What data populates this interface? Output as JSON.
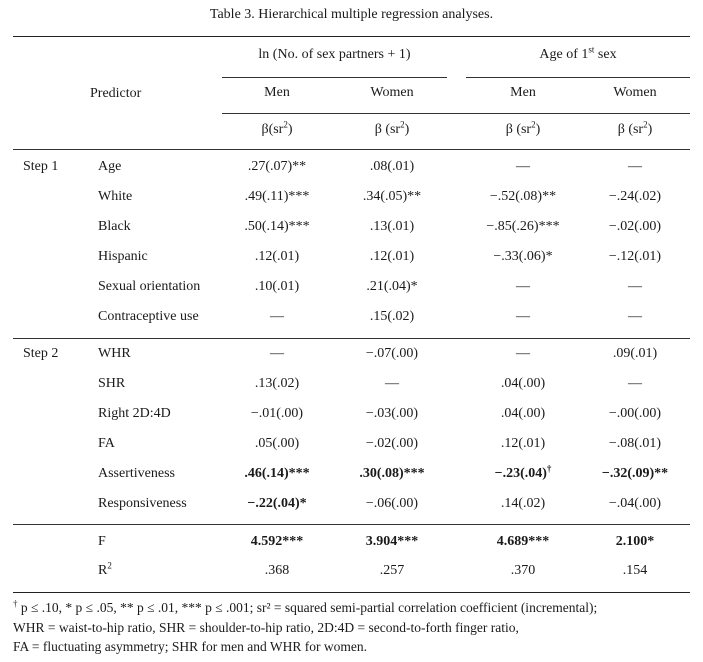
{
  "table": {
    "caption": "Table 3.   Hierarchical multiple regression analyses.",
    "col_groups": [
      {
        "label": "ln (No. of sex partners + 1)"
      },
      {
        "label": "Age of 1",
        "label_sup": "st",
        "label_after": " sex"
      }
    ],
    "predictor_label": "Predictor",
    "sub_headers": [
      "Men",
      "Women",
      "Men",
      "Women"
    ],
    "beta_headers": [
      {
        "pre": "β(sr",
        "sup": "2",
        "post": ")"
      },
      {
        "pre": "β (sr",
        "sup": "2",
        "post": ")"
      },
      {
        "pre": "β (sr",
        "sup": "2",
        "post": ")"
      },
      {
        "pre": "β (sr",
        "sup": "2",
        "post": ")"
      }
    ],
    "steps": [
      {
        "label": "Step 1",
        "rows": [
          {
            "predictor": "Age",
            "values": [
              ".27(.07)**",
              ".08(.01)",
              "—",
              "—"
            ]
          },
          {
            "predictor": "White",
            "values": [
              ".49(.11)***",
              ".34(.05)**",
              "−.52(.08)**",
              "−.24(.02)"
            ]
          },
          {
            "predictor": "Black",
            "values": [
              ".50(.14)***",
              ".13(.01)",
              "−.85(.26)***",
              "−.02(.00)"
            ]
          },
          {
            "predictor": "Hispanic",
            "values": [
              ".12(.01)",
              ".12(.01)",
              "−.33(.06)*",
              "−.12(.01)"
            ]
          },
          {
            "predictor": "Sexual orientation",
            "values": [
              ".10(.01)",
              ".21(.04)*",
              "—",
              "—"
            ]
          },
          {
            "predictor": "Contraceptive use",
            "values": [
              "—",
              ".15(.02)",
              "—",
              "—"
            ]
          }
        ]
      },
      {
        "label": "Step 2",
        "rows": [
          {
            "predictor": "WHR",
            "values": [
              "—",
              "−.07(.00)",
              "—",
              ".09(.01)"
            ]
          },
          {
            "predictor": "SHR",
            "values": [
              ".13(.02)",
              "—",
              ".04(.00)",
              "—"
            ]
          },
          {
            "predictor": "Right 2D:4D",
            "values": [
              "−.01(.00)",
              "−.03(.00)",
              ".04(.00)",
              "−.00(.00)"
            ]
          },
          {
            "predictor": "FA",
            "values": [
              ".05(.00)",
              "−.02(.00)",
              ".12(.01)",
              "−.08(.01)"
            ]
          },
          {
            "predictor": "Assertiveness",
            "values": [
              ".46(.14)***",
              ".30(.08)***",
              "−.23(.04)",
              "−.32(.09)**"
            ],
            "value_sups": [
              "",
              "",
              "†",
              ""
            ],
            "bold": [
              true,
              true,
              true,
              true
            ]
          },
          {
            "predictor": "Responsiveness",
            "values": [
              "−.22(.04)*",
              "−.06(.00)",
              ".14(.02)",
              "−.04(.00)"
            ],
            "bold": [
              true,
              false,
              false,
              false
            ]
          }
        ]
      }
    ],
    "summary": [
      {
        "label": "F",
        "values": [
          "4.592***",
          "3.904***",
          "4.689***",
          "2.100*"
        ],
        "bold": true
      },
      {
        "label": "R",
        "label_sup": "2",
        "values": [
          ".368",
          ".257",
          ".370",
          ".154"
        ],
        "bold": false
      }
    ],
    "footnotes": [
      {
        "sup": "†",
        "text": " p ≤ .10, * p ≤ .05, ** p ≤ .01, *** p ≤ .001; sr² = squared semi-partial correlation coefficient (incremental);"
      },
      {
        "sup": "",
        "text": "WHR = waist-to-hip ratio, SHR = shoulder-to-hip ratio, 2D:4D = second-to-forth finger ratio,"
      },
      {
        "sup": "",
        "text": "FA = fluctuating asymmetry; SHR for men and WHR for women."
      }
    ]
  }
}
